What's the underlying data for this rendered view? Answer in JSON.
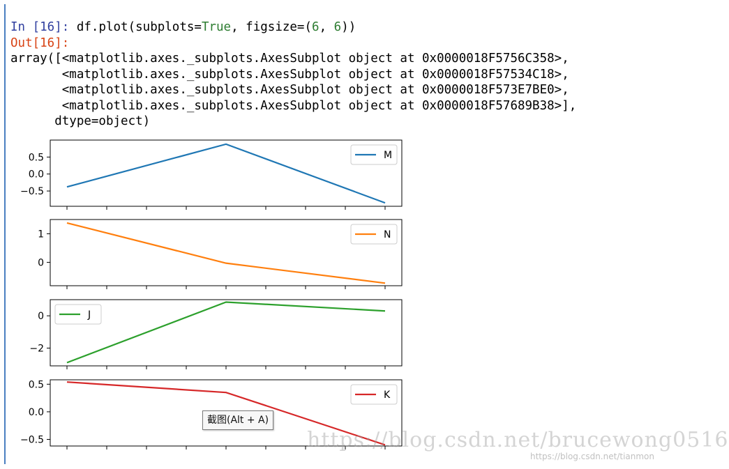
{
  "cell": {
    "in_prompt": "In [16]:",
    "code_prefix": " df.plot(subplots=",
    "code_kw": "True",
    "code_mid": ", figsize=(",
    "code_n1": "6",
    "code_sep": ", ",
    "code_n2": "6",
    "code_suffix": "))",
    "out_prompt": "Out[16]:",
    "output_lines": [
      "array([<matplotlib.axes._subplots.AxesSubplot object at 0x0000018F5756C358>,",
      "       <matplotlib.axes._subplots.AxesSubplot object at 0x0000018F57534C18>,",
      "       <matplotlib.axes._subplots.AxesSubplot object at 0x0000018F573E7BE0>,",
      "       <matplotlib.axes._subplots.AxesSubplot object at 0x0000018F57689B38>],",
      "      dtype=object)"
    ]
  },
  "chart_data": [
    {
      "type": "line",
      "series": [
        {
          "name": "M",
          "values": [
            -0.38,
            0.88,
            -0.85
          ],
          "color": "#1f77b4"
        }
      ],
      "x": [
        0,
        1,
        2
      ],
      "ylim": [
        -0.95,
        1.0
      ],
      "yticks": [
        {
          "v": 0.5,
          "label": "0.5"
        },
        {
          "v": 0.0,
          "label": "0.0"
        },
        {
          "v": -0.5,
          "label": "−0.5"
        }
      ],
      "legend": "top-right"
    },
    {
      "type": "line",
      "series": [
        {
          "name": "N",
          "values": [
            1.38,
            -0.03,
            -0.73
          ],
          "color": "#ff7f0e"
        }
      ],
      "x": [
        0,
        1,
        2
      ],
      "ylim": [
        -0.82,
        1.5
      ],
      "yticks": [
        {
          "v": 1,
          "label": "1"
        },
        {
          "v": 0,
          "label": "0"
        }
      ],
      "legend": "top-right"
    },
    {
      "type": "line",
      "series": [
        {
          "name": "J",
          "values": [
            -2.9,
            0.85,
            0.3
          ],
          "color": "#2ca02c"
        }
      ],
      "x": [
        0,
        1,
        2
      ],
      "ylim": [
        -3.1,
        1.0
      ],
      "yticks": [
        {
          "v": 0,
          "label": "0"
        },
        {
          "v": -2,
          "label": "−2"
        }
      ],
      "legend": "top-left"
    },
    {
      "type": "line",
      "series": [
        {
          "name": "K",
          "values": [
            0.54,
            0.35,
            -0.6
          ],
          "color": "#d62728"
        }
      ],
      "x": [
        0,
        1,
        2
      ],
      "ylim": [
        -0.62,
        0.58
      ],
      "yticks": [
        {
          "v": 0.5,
          "label": "0.5"
        },
        {
          "v": 0.0,
          "label": "0.0"
        },
        {
          "v": -0.5,
          "label": "−0.5"
        }
      ],
      "legend": "top-right"
    }
  ],
  "tooltip": "截图(Alt + A)",
  "watermark": "https://blog.csdn.net/brucewong0516",
  "watermark_small": "https://blog.csdn.net/tianmon"
}
